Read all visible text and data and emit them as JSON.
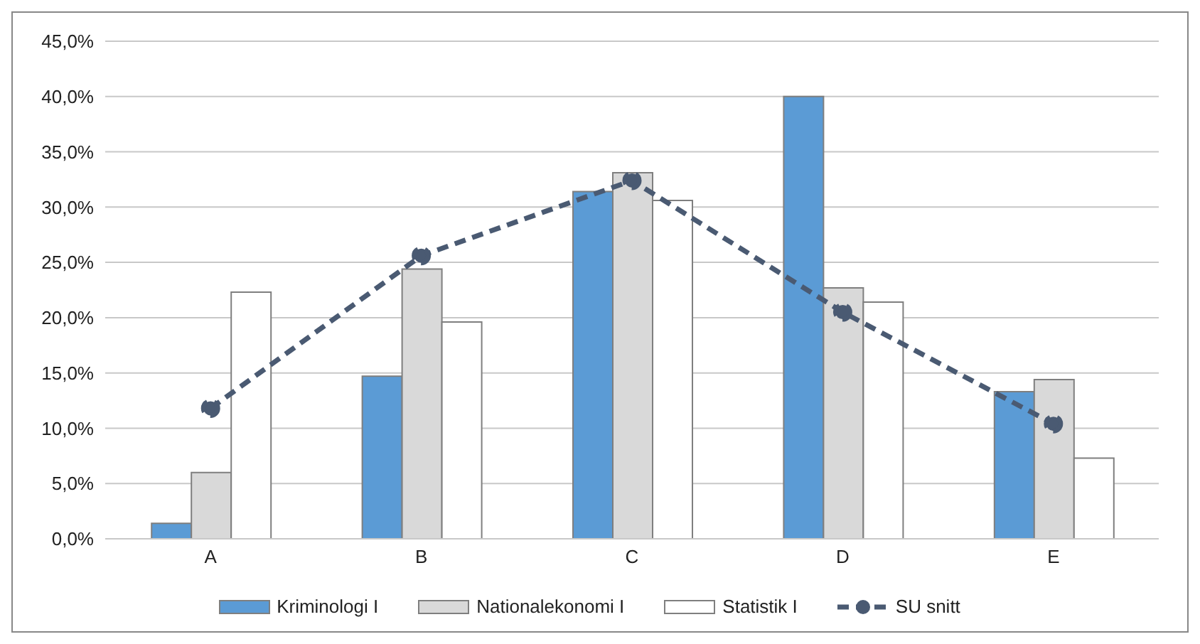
{
  "chart_data": {
    "type": "bar",
    "categories": [
      "A",
      "B",
      "C",
      "D",
      "E"
    ],
    "series": [
      {
        "name": "Kriminologi I",
        "color": "#5b9bd5",
        "values": [
          1.4,
          14.7,
          31.4,
          40.0,
          13.3
        ]
      },
      {
        "name": "Nationalekonomi I",
        "color": "#d9d9d9",
        "values": [
          6.0,
          24.4,
          33.1,
          22.7,
          14.4
        ]
      },
      {
        "name": "Statistik I",
        "color": "#ffffff",
        "values": [
          22.3,
          19.6,
          30.6,
          21.4,
          7.3
        ]
      },
      {
        "name": "SU snitt",
        "type": "line",
        "color": "#4a5a72",
        "line_style": "dashed",
        "marker": "circle",
        "values": [
          11.8,
          25.6,
          32.4,
          20.5,
          10.4
        ]
      }
    ],
    "ylim": [
      0,
      45
    ],
    "yticks": [
      {
        "value": 0,
        "label": "0,0%"
      },
      {
        "value": 5,
        "label": "5,0%"
      },
      {
        "value": 10,
        "label": "10,0%"
      },
      {
        "value": 15,
        "label": "15,0%"
      },
      {
        "value": 20,
        "label": "20,0%"
      },
      {
        "value": 25,
        "label": "25,0%"
      },
      {
        "value": 30,
        "label": "30,0%"
      },
      {
        "value": 35,
        "label": "35,0%"
      },
      {
        "value": 40,
        "label": "40,0%"
      },
      {
        "value": 45,
        "label": "45,0%"
      }
    ],
    "grid": "y",
    "legend": "bottom"
  }
}
